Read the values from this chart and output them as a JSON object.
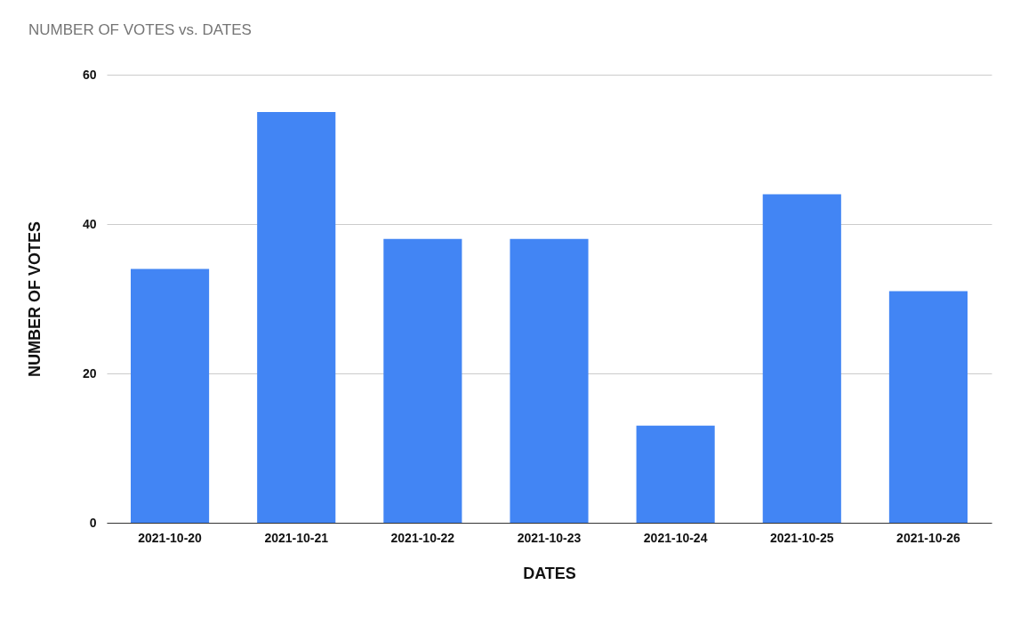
{
  "chart_data": {
    "type": "bar",
    "title": "NUMBER OF VOTES vs. DATES",
    "xlabel": "DATES",
    "ylabel": "NUMBER OF VOTES",
    "categories": [
      "2021-10-20",
      "2021-10-21",
      "2021-10-22",
      "2021-10-23",
      "2021-10-24",
      "2021-10-25",
      "2021-10-26"
    ],
    "values": [
      34,
      55,
      38,
      38,
      13,
      44,
      31
    ],
    "color": "#4285f4",
    "ylim": [
      0,
      60
    ],
    "yticks": [
      0,
      20,
      40,
      60
    ],
    "grid": "y"
  }
}
